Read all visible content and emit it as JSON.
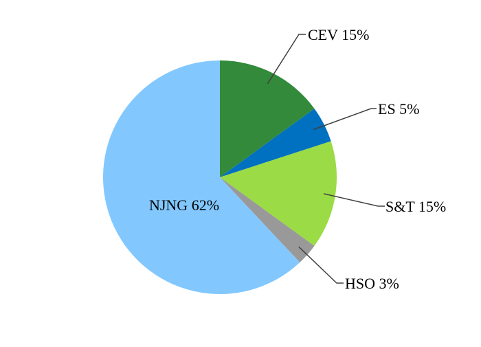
{
  "chart_data": {
    "type": "pie",
    "title": "",
    "legend": "none",
    "slices": [
      {
        "name": "CEV",
        "value": 15,
        "label": "CEV 15%",
        "color": "#338A3A"
      },
      {
        "name": "ES",
        "value": 5,
        "label": "ES 5%",
        "color": "#0070C0"
      },
      {
        "name": "S&T",
        "value": 15,
        "label": "S&T 15%",
        "color": "#9BDB45"
      },
      {
        "name": "HSO",
        "value": 3,
        "label": "HSO 3%",
        "color": "#999999"
      },
      {
        "name": "NJNG",
        "value": 62,
        "label": "NJNG 62%",
        "color": "#82C8FF"
      }
    ]
  }
}
